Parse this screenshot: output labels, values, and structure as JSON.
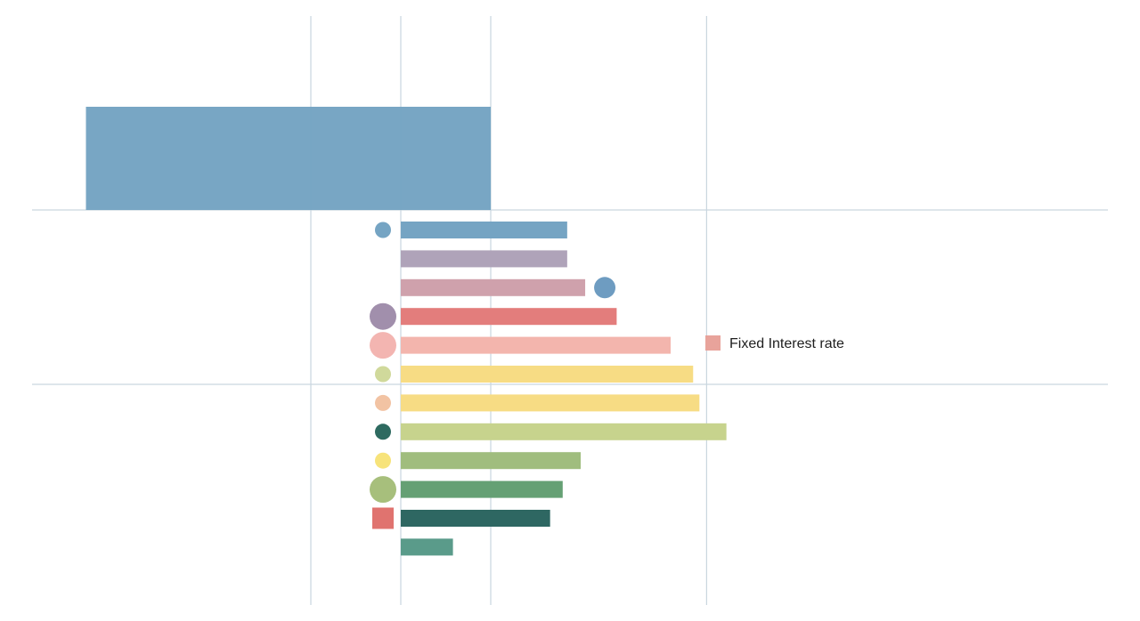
{
  "chart_data": {
    "type": "bar",
    "orientation": "horizontal",
    "title": "",
    "xlabel": "",
    "ylabel": "",
    "grid": true,
    "legend": {
      "position": "right",
      "entries": [
        {
          "label": "Fixed Interest rate",
          "color": "#e8a39b"
        }
      ]
    },
    "xlim": [
      -3.9,
      7.6
    ],
    "x_gridlines": [
      -1,
      0,
      1,
      3.4
    ],
    "header_bar": {
      "start": -3.5,
      "end": 1,
      "color": "#73a2c2"
    },
    "bars": [
      {
        "value": 1.85,
        "color": "#75a4c3",
        "marker": {
          "type": "circle",
          "color": "#75a4c3",
          "size": "small",
          "side": "left"
        }
      },
      {
        "value": 1.85,
        "color": "#afa3b9",
        "marker": null
      },
      {
        "value": 2.05,
        "color": "#cfa1ac",
        "marker": {
          "type": "circle",
          "color": "#6e9cc1",
          "size": "medium",
          "side": "right"
        }
      },
      {
        "value": 2.4,
        "color": "#e37d7c",
        "marker": {
          "type": "circle",
          "color": "#a18fac",
          "size": "large",
          "side": "left"
        }
      },
      {
        "value": 3.0,
        "color": "#f3b5ad",
        "marker": {
          "type": "circle",
          "color": "#f3b5b1",
          "size": "large",
          "side": "left"
        }
      },
      {
        "value": 3.25,
        "color": "#f7dc84",
        "marker": {
          "type": "circle",
          "color": "#d0d99b",
          "size": "small",
          "side": "left"
        }
      },
      {
        "value": 3.32,
        "color": "#f7dc84",
        "marker": {
          "type": "circle",
          "color": "#f2c3a3",
          "size": "small",
          "side": "left"
        }
      },
      {
        "value": 3.62,
        "color": "#c7d38d",
        "marker": {
          "type": "circle",
          "color": "#2e6a60",
          "size": "small",
          "side": "left"
        }
      },
      {
        "value": 2.0,
        "color": "#a0bd7e",
        "marker": {
          "type": "circle",
          "color": "#f7e37a",
          "size": "small",
          "side": "left"
        }
      },
      {
        "value": 1.8,
        "color": "#65a074",
        "marker": {
          "type": "circle",
          "color": "#a7bf7c",
          "size": "large",
          "side": "left"
        }
      },
      {
        "value": 1.66,
        "color": "#2e6762",
        "marker": {
          "type": "square",
          "color": "#e0736f",
          "size": "medium",
          "side": "left"
        }
      },
      {
        "value": 0.58,
        "color": "#5a9b8a",
        "marker": null
      }
    ]
  }
}
